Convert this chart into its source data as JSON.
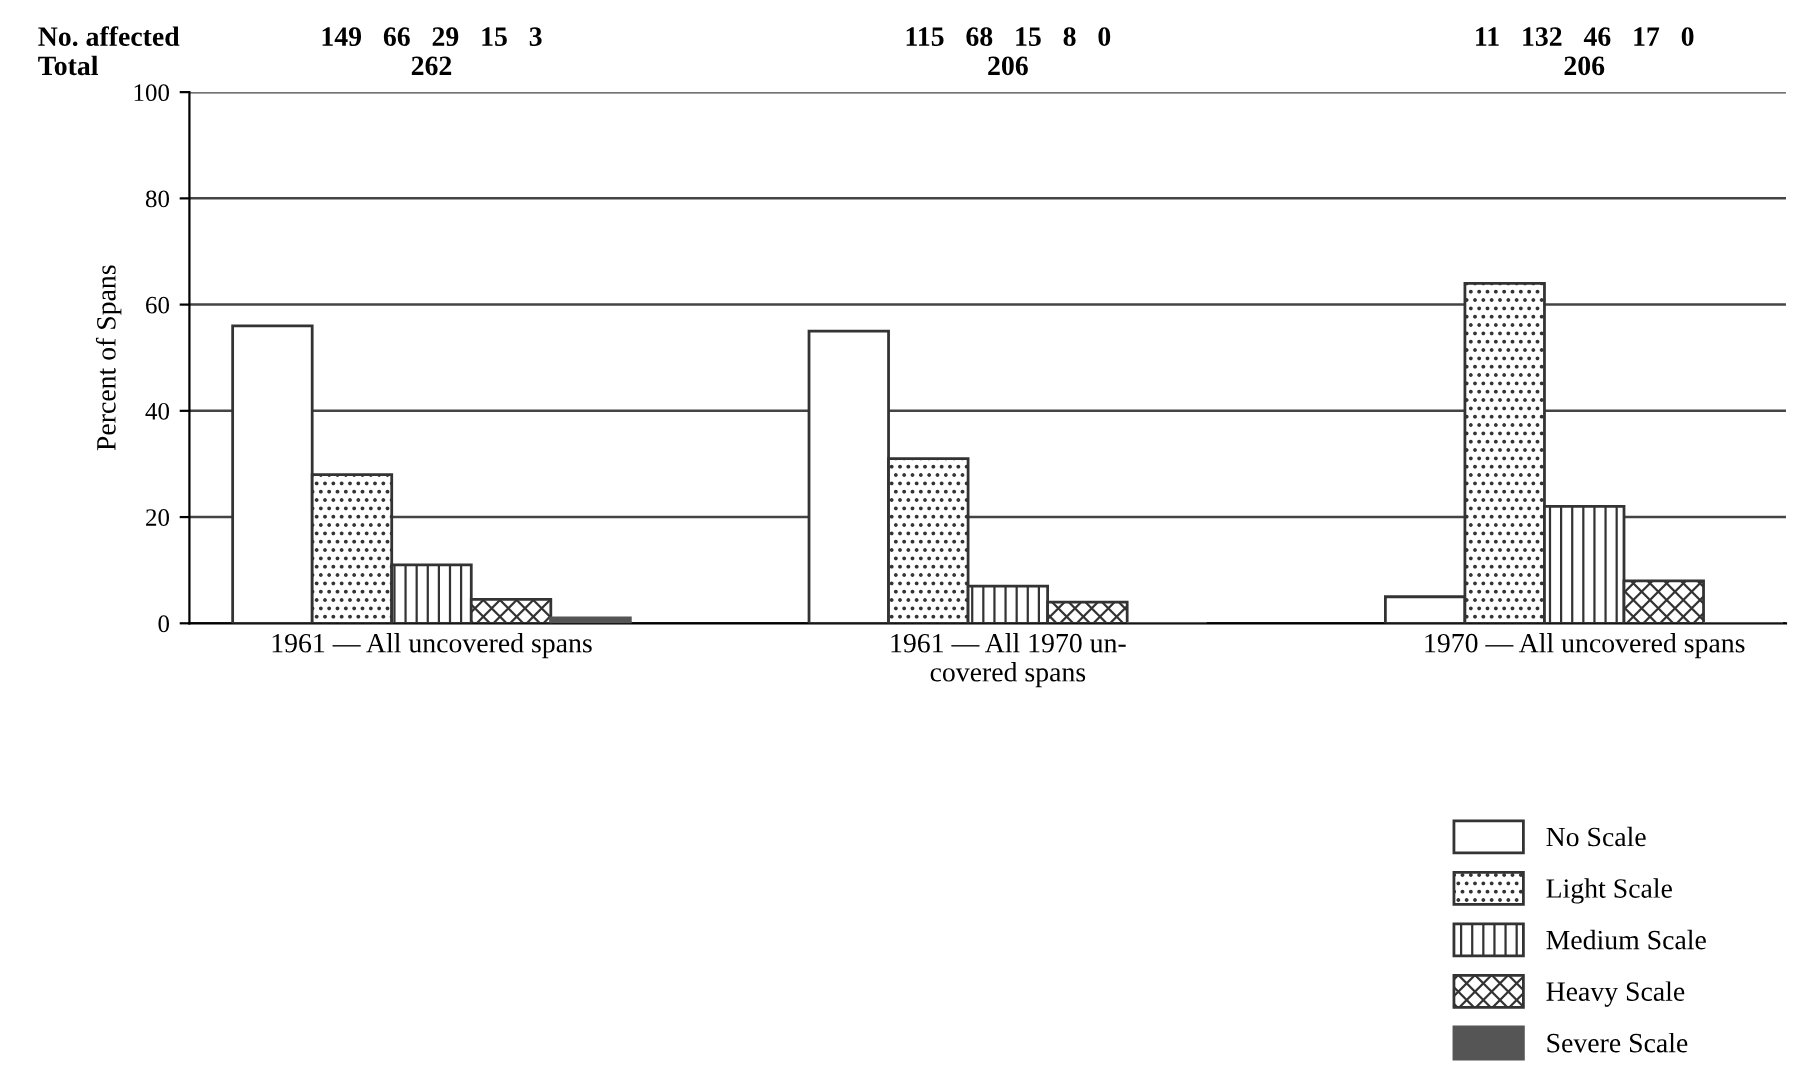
{
  "chart_data": {
    "type": "bar",
    "ylabel": "Percent of Spans",
    "categories": [
      "1961 — All uncovered spans",
      "1961 — All 1970 un-\ncovered spans",
      "1970 — All uncovered spans"
    ],
    "series": [
      {
        "name": "No Scale",
        "color": "#ffffff",
        "values": [
          56,
          55,
          5
        ]
      },
      {
        "name": "Light Scale",
        "color": "#333333",
        "values": [
          28,
          31,
          64
        ]
      },
      {
        "name": "Medium Scale",
        "color": "#333333",
        "values": [
          11,
          7,
          22
        ]
      },
      {
        "name": "Heavy Scale",
        "color": "#333333",
        "values": [
          4.5,
          4,
          8
        ]
      },
      {
        "name": "Severe Scale",
        "color": "#555555",
        "values": [
          1,
          0,
          0
        ]
      }
    ],
    "annotations": [
      "No. affected",
      "Total",
      "149   66   29   15   3",
      "262",
      "115   68   15   8   0",
      "206",
      "11   132   46   17   0",
      "206"
    ],
    "ylim": [
      0,
      100
    ],
    "yticks": [
      0,
      20,
      40,
      60,
      80,
      100
    ],
    "grid": "y",
    "legend": "bottom right"
  }
}
